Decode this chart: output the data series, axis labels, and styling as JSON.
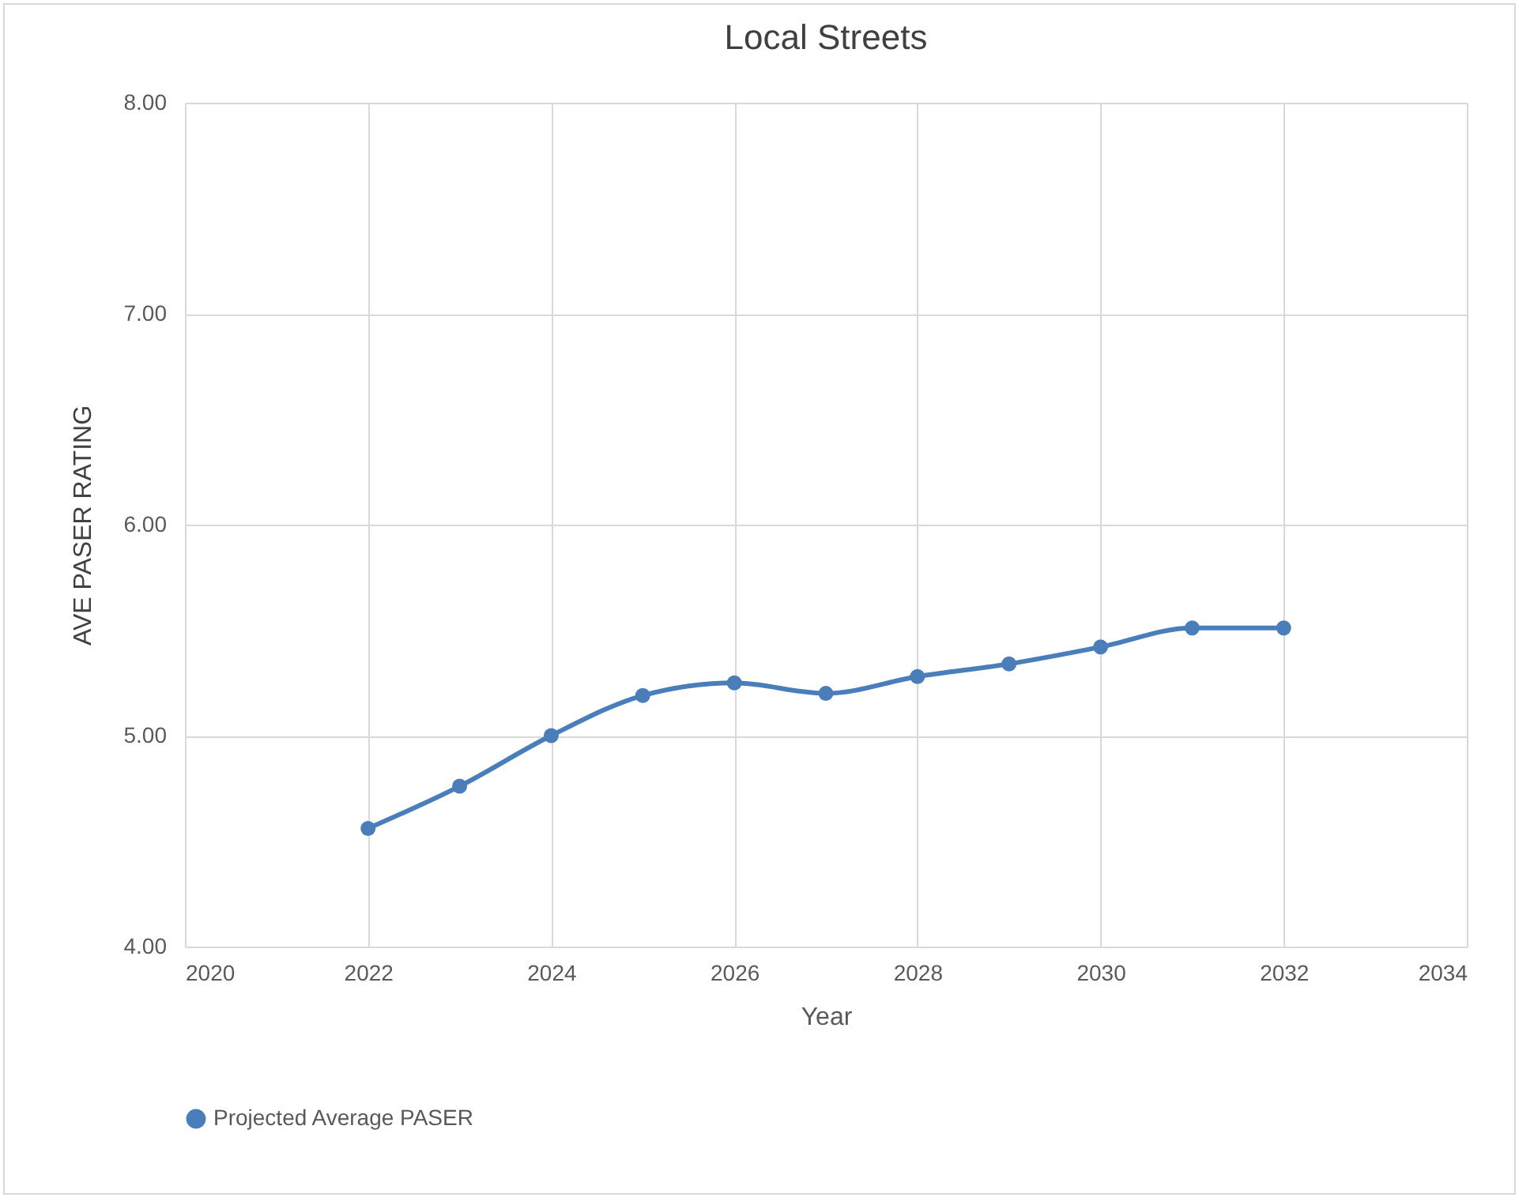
{
  "chart_data": {
    "type": "line",
    "title": "Local Streets",
    "xlabel": "Year",
    "ylabel": "AVE PASER RATING",
    "x": [
      2022,
      2023,
      2024,
      2025,
      2026,
      2027,
      2028,
      2029,
      2030,
      2031,
      2032
    ],
    "series": [
      {
        "name": "Projected Average PASER",
        "color": "#4a7ebb",
        "values": [
          4.56,
          4.76,
          5.0,
          5.19,
          5.25,
          5.2,
          5.28,
          5.34,
          5.42,
          5.51,
          5.51
        ]
      }
    ],
    "xlim": [
      2020,
      2034
    ],
    "xticks": [
      2020,
      2022,
      2024,
      2026,
      2028,
      2030,
      2032,
      2034
    ],
    "ylim": [
      4,
      8
    ],
    "yticks": [
      {
        "value": 4,
        "label": "4.00"
      },
      {
        "value": 5,
        "label": "5.00"
      },
      {
        "value": 6,
        "label": "6.00"
      },
      {
        "value": 7,
        "label": "7.00"
      },
      {
        "value": 8,
        "label": "8.00"
      }
    ],
    "grid": true,
    "legend": "bottom",
    "marker": "circle",
    "line_style": "solid"
  }
}
